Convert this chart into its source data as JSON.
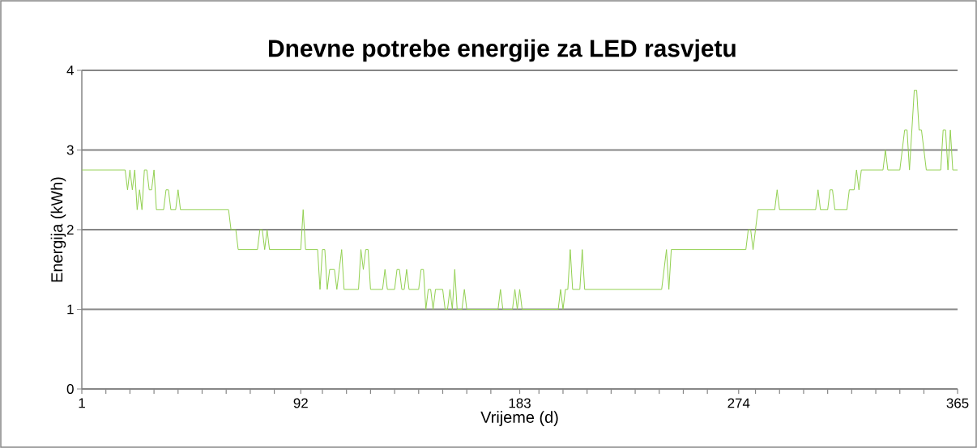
{
  "chart_data": {
    "type": "line",
    "title": "Dnevne potrebe energije za LED rasvjetu",
    "xlabel": "Vrijeme (d)",
    "ylabel": "Energija (kWh)",
    "color": "#92d050",
    "grid": "y",
    "xlim": [
      1,
      365
    ],
    "ylim": [
      0,
      4
    ],
    "yticks": [
      0,
      1,
      2,
      3,
      4
    ],
    "xticks": [
      1,
      {
        "value": 11,
        "label": null
      },
      {
        "value": 21,
        "label": null
      },
      {
        "value": 31,
        "label": null
      },
      {
        "value": 41,
        "label": null
      },
      {
        "value": 51,
        "label": null
      },
      {
        "value": 61,
        "label": null
      },
      {
        "value": 71,
        "label": null
      },
      {
        "value": 81,
        "label": null
      },
      92,
      {
        "value": 101,
        "label": null
      },
      {
        "value": 111,
        "label": null
      },
      {
        "value": 121,
        "label": null
      },
      {
        "value": 131,
        "label": null
      },
      {
        "value": 141,
        "label": null
      },
      {
        "value": 151,
        "label": null
      },
      {
        "value": 161,
        "label": null
      },
      {
        "value": 171,
        "label": null
      },
      183,
      {
        "value": 191,
        "label": null
      },
      {
        "value": 201,
        "label": null
      },
      {
        "value": 211,
        "label": null
      },
      {
        "value": 221,
        "label": null
      },
      {
        "value": 231,
        "label": null
      },
      {
        "value": 241,
        "label": null
      },
      {
        "value": 251,
        "label": null
      },
      {
        "value": 261,
        "label": null
      },
      274,
      {
        "value": 281,
        "label": null
      },
      {
        "value": 291,
        "label": null
      },
      {
        "value": 301,
        "label": null
      },
      {
        "value": 311,
        "label": null
      },
      {
        "value": 321,
        "label": null
      },
      {
        "value": 331,
        "label": null
      },
      {
        "value": 341,
        "label": null
      },
      {
        "value": 351,
        "label": null
      },
      365
    ],
    "x": [
      1,
      19,
      20,
      21,
      22,
      23,
      24,
      25,
      26,
      27,
      28,
      29,
      30,
      31,
      32,
      35,
      36,
      37,
      38,
      40,
      41,
      42,
      62,
      63,
      65,
      66,
      74,
      75,
      76,
      77,
      78,
      79,
      92,
      93,
      94,
      99,
      100,
      101,
      102,
      103,
      104,
      106,
      107,
      108,
      109,
      110,
      116,
      117,
      118,
      119,
      120,
      121,
      126,
      127,
      128,
      131,
      132,
      133,
      134,
      135,
      136,
      137,
      141,
      142,
      143,
      144,
      145,
      146,
      147,
      148,
      151,
      152,
      153,
      154,
      155,
      156,
      157,
      159,
      160,
      161,
      174,
      175,
      176,
      180,
      181,
      182,
      183,
      184,
      199,
      200,
      201,
      202,
      203,
      204,
      205,
      208,
      209,
      210,
      242,
      244,
      245,
      246,
      277,
      278,
      279,
      280,
      282,
      289,
      290,
      291,
      306,
      307,
      308,
      311,
      312,
      313,
      314,
      319,
      320,
      322,
      323,
      324,
      325,
      334,
      335,
      336,
      341,
      343,
      344,
      345,
      346,
      347,
      348,
      349,
      350,
      351,
      352,
      358,
      359,
      360,
      361,
      362,
      363,
      365
    ],
    "values": [
      2.75,
      2.75,
      2.5,
      2.75,
      2.5,
      2.75,
      2.25,
      2.5,
      2.25,
      2.75,
      2.75,
      2.5,
      2.5,
      2.75,
      2.25,
      2.25,
      2.5,
      2.5,
      2.25,
      2.25,
      2.5,
      2.25,
      2.25,
      2.0,
      2.0,
      1.75,
      1.75,
      2.0,
      2.0,
      1.75,
      2.0,
      1.75,
      1.75,
      2.25,
      1.75,
      1.75,
      1.25,
      1.75,
      1.75,
      1.25,
      1.5,
      1.5,
      1.25,
      1.5,
      1.75,
      1.25,
      1.25,
      1.75,
      1.5,
      1.75,
      1.75,
      1.25,
      1.25,
      1.5,
      1.25,
      1.25,
      1.5,
      1.5,
      1.25,
      1.25,
      1.5,
      1.25,
      1.25,
      1.5,
      1.5,
      1.0,
      1.25,
      1.25,
      1.0,
      1.25,
      1.25,
      1.0,
      1.0,
      1.25,
      1.0,
      1.5,
      1.0,
      1.0,
      1.25,
      1.0,
      1.0,
      1.25,
      1.0,
      1.0,
      1.25,
      1.0,
      1.25,
      1.0,
      1.0,
      1.25,
      1.0,
      1.25,
      1.25,
      1.75,
      1.25,
      1.25,
      1.75,
      1.25,
      1.25,
      1.75,
      1.25,
      1.75,
      1.75,
      2.0,
      2.0,
      1.75,
      2.25,
      2.25,
      2.5,
      2.25,
      2.25,
      2.5,
      2.25,
      2.25,
      2.5,
      2.5,
      2.25,
      2.25,
      2.5,
      2.5,
      2.75,
      2.5,
      2.75,
      2.75,
      3.0,
      2.75,
      2.75,
      3.25,
      3.25,
      2.75,
      3.25,
      3.75,
      3.75,
      3.25,
      3.25,
      3.0,
      2.75,
      2.75,
      3.25,
      3.25,
      2.75,
      3.25,
      2.75,
      2.75
    ]
  }
}
